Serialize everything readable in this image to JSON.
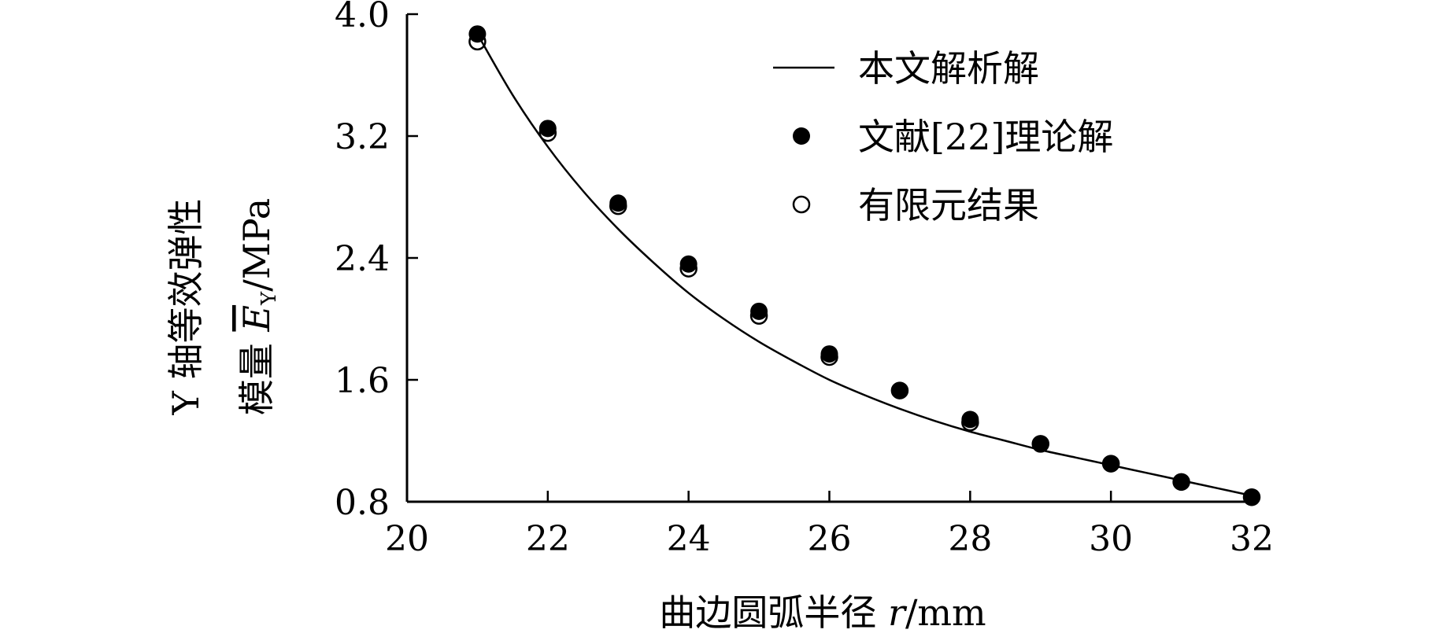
{
  "chart_data": {
    "type": "line",
    "xlim": [
      20,
      32
    ],
    "ylim": [
      0.8,
      4.0
    ],
    "xticks": [
      "20",
      "22",
      "24",
      "26",
      "28",
      "30",
      "32"
    ],
    "xtick_values": [
      20,
      22,
      24,
      26,
      28,
      30,
      32
    ],
    "yticks": [
      "0.8",
      "1.6",
      "2.4",
      "3.2",
      "4.0"
    ],
    "ytick_values": [
      0.8,
      1.6,
      2.4,
      3.2,
      4.0
    ],
    "xlabel": {
      "prefix": "曲边圆弧半径 ",
      "var": "r",
      "unit": "/mm"
    },
    "ylabel": {
      "line1": "Y 轴等效弹性",
      "line2_prefix": "模量 ",
      "var": "E",
      "sub": "Y",
      "unit": "/MPa"
    },
    "grid": false,
    "legend_position": "top-right",
    "series": [
      {
        "name": "本文解析解",
        "marker": "line",
        "x": [
          21,
          21.5,
          22,
          22.5,
          23,
          23.5,
          24,
          24.5,
          25,
          25.5,
          26,
          26.5,
          27,
          27.5,
          28,
          28.5,
          29,
          29.5,
          30,
          30.5,
          31,
          31.5,
          32
        ],
        "y": [
          3.87,
          3.47,
          3.13,
          2.84,
          2.59,
          2.37,
          2.17,
          2.0,
          1.85,
          1.72,
          1.6,
          1.5,
          1.41,
          1.33,
          1.26,
          1.2,
          1.14,
          1.09,
          1.04,
          0.99,
          0.94,
          0.89,
          0.84
        ]
      },
      {
        "name": "文献[22]理论解",
        "marker": "filled-circle",
        "x": [
          21,
          22,
          23,
          24,
          25,
          26,
          27,
          28,
          29,
          30,
          31,
          32
        ],
        "y": [
          3.87,
          3.25,
          2.76,
          2.36,
          2.05,
          1.77,
          1.53,
          1.34,
          1.18,
          1.05,
          0.93,
          0.83
        ]
      },
      {
        "name": "有限元结果",
        "marker": "open-circle",
        "x": [
          21,
          22,
          23,
          24,
          25,
          26,
          27,
          28,
          29,
          30,
          31,
          32
        ],
        "y": [
          3.82,
          3.22,
          2.74,
          2.33,
          2.02,
          1.75,
          1.53,
          1.32,
          1.18,
          1.05,
          0.93,
          0.83
        ]
      }
    ]
  }
}
